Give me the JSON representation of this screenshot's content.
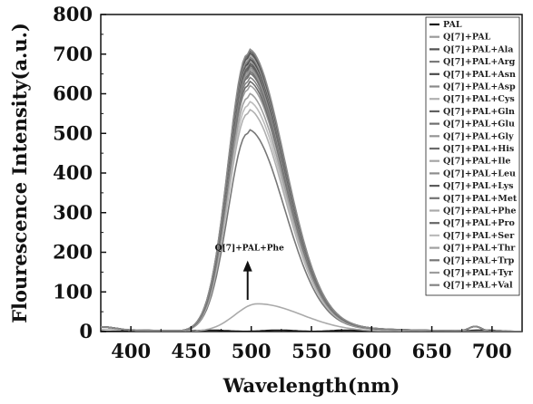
{
  "chart_data": {
    "type": "line",
    "xlabel": "Wavelength(nm)",
    "ylabel": "Flourescence Intensity(a.u.)",
    "xlim": [
      375,
      725
    ],
    "ylim": [
      0,
      800
    ],
    "xticks": [
      400,
      450,
      500,
      550,
      600,
      650,
      700
    ],
    "yticks": [
      0,
      100,
      200,
      300,
      400,
      500,
      600,
      700,
      800
    ],
    "legend_position": "top-right",
    "annotation": {
      "text": "Q[7]+PAL+Phe",
      "x": 497,
      "y_from": 80,
      "y_to": 170
    },
    "series": [
      {
        "name": "PAL",
        "color": "#1a1a1a",
        "peak": 3
      },
      {
        "name": "Q[7]+PAL",
        "color": "#9a9a9a",
        "peak": 650
      },
      {
        "name": "Q[7]+PAL+Ala",
        "color": "#505050",
        "peak": 690
      },
      {
        "name": "Q[7]+PAL+Arg",
        "color": "#7a7a7a",
        "peak": 680
      },
      {
        "name": "Q[7]+PAL+Asn",
        "color": "#4a4a4a",
        "peak": 675
      },
      {
        "name": "Q[7]+PAL+Asp",
        "color": "#8a8a8a",
        "peak": 700
      },
      {
        "name": "Q[7]+PAL+Cys",
        "color": "#b0b0b0",
        "peak": 550
      },
      {
        "name": "Q[7]+PAL+Gln",
        "color": "#606060",
        "peak": 660
      },
      {
        "name": "Q[7]+PAL+Glu",
        "color": "#6e6e6e",
        "peak": 640
      },
      {
        "name": "Q[7]+PAL+Gly",
        "color": "#959595",
        "peak": 670
      },
      {
        "name": "Q[7]+PAL+His",
        "color": "#6a6a6a",
        "peak": 620
      },
      {
        "name": "Q[7]+PAL+Ile",
        "color": "#a5a5a5",
        "peak": 685
      },
      {
        "name": "Q[7]+PAL+Leu",
        "color": "#8d8d8d",
        "peak": 655
      },
      {
        "name": "Q[7]+PAL+Lys",
        "color": "#5c5c5c",
        "peak": 665
      },
      {
        "name": "Q[7]+PAL+Met",
        "color": "#737373",
        "peak": 645
      },
      {
        "name": "Q[7]+PAL+Phe",
        "color": "#aaaaaa",
        "peak": 70
      },
      {
        "name": "Q[7]+PAL+Pro",
        "color": "#666666",
        "peak": 695
      },
      {
        "name": "Q[7]+PAL+Ser",
        "color": "#bcbcbc",
        "peak": 570
      },
      {
        "name": "Q[7]+PAL+Thr",
        "color": "#a0a0a0",
        "peak": 590
      },
      {
        "name": "Q[7]+PAL+Trp",
        "color": "#777777",
        "peak": 500
      },
      {
        "name": "Q[7]+PAL+Tyr",
        "color": "#9d9d9d",
        "peak": 610
      },
      {
        "name": "Q[7]+PAL+Val",
        "color": "#838383",
        "peak": 630
      }
    ]
  }
}
